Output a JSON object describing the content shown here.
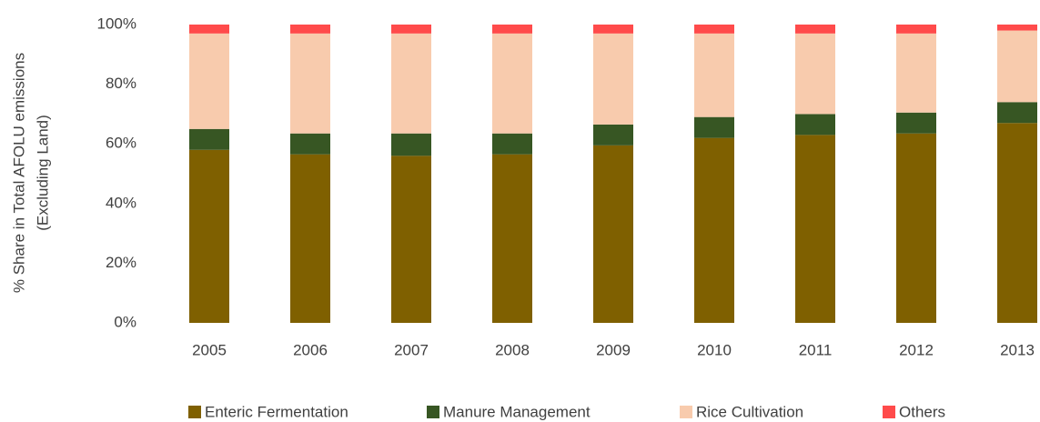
{
  "chart_data": {
    "type": "bar",
    "stacked": true,
    "y_label": [
      "% Share in Total AFOLU emissions",
      "(Excluding Land)"
    ],
    "categories": [
      "2005",
      "2006",
      "2007",
      "2008",
      "2009",
      "2010",
      "2011",
      "2012",
      "2013"
    ],
    "series": [
      {
        "name": "Enteric Fermentation",
        "color": "#7f6000",
        "values": [
          58,
          56.5,
          56,
          56.5,
          59.5,
          62,
          63,
          63.5,
          67
        ]
      },
      {
        "name": "Manure Management",
        "color": "#375623",
        "values": [
          7,
          7,
          7.5,
          7,
          7,
          7,
          7,
          7,
          7
        ]
      },
      {
        "name": "Rice Cultivation",
        "color": "#f8cbad",
        "values": [
          32,
          33.5,
          33.5,
          33.5,
          30.5,
          28,
          27,
          26.5,
          24
        ]
      },
      {
        "name": "Others",
        "color": "#ff4b4b",
        "values": [
          3,
          3,
          3,
          3,
          3,
          3,
          3,
          3,
          2
        ]
      }
    ],
    "ylim": [
      0,
      100
    ],
    "yticks": [
      {
        "value": 0,
        "label": "0%"
      },
      {
        "value": 20,
        "label": "20%"
      },
      {
        "value": 40,
        "label": "40%"
      },
      {
        "value": 60,
        "label": "60%"
      },
      {
        "value": 80,
        "label": "80%"
      },
      {
        "value": 100,
        "label": "100%"
      }
    ],
    "legend": "bottom"
  }
}
